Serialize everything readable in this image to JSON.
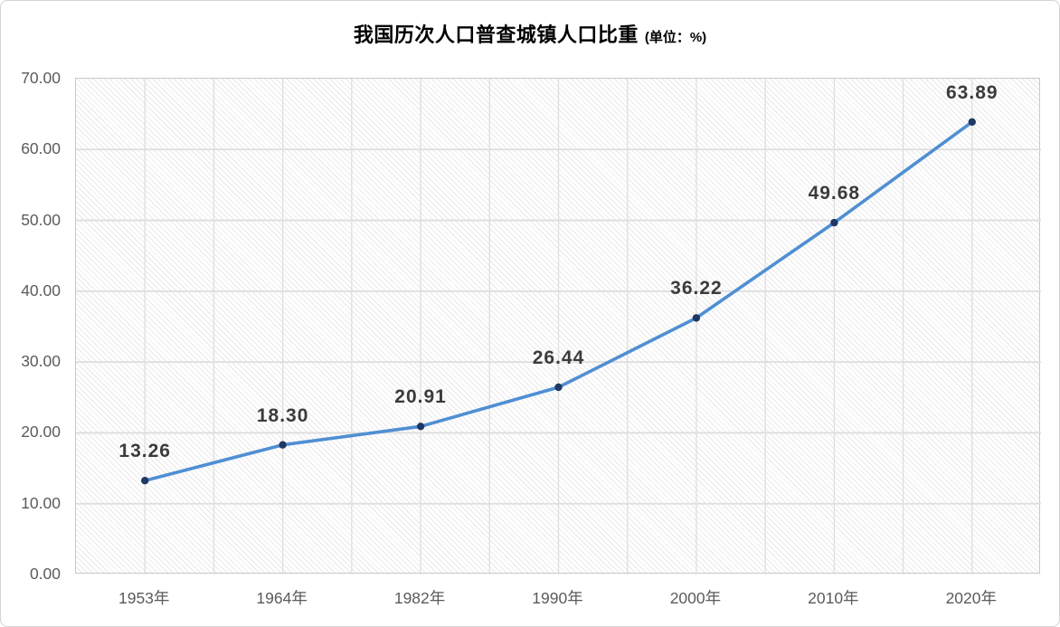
{
  "chart": {
    "title": "我国历次人口普查城镇人口比重",
    "unit_label": "(单位：%)"
  },
  "chart_data": {
    "type": "line",
    "title": "我国历次人口普查城镇人口比重 (单位：%)",
    "xlabel": "",
    "ylabel": "",
    "categories": [
      "1953年",
      "1964年",
      "1982年",
      "1990年",
      "2000年",
      "2010年",
      "2020年"
    ],
    "values": [
      13.26,
      18.3,
      20.91,
      26.44,
      36.22,
      49.68,
      63.89
    ],
    "data_labels": [
      "13.26",
      "18.30",
      "20.91",
      "26.44",
      "36.22",
      "49.68",
      "63.89"
    ],
    "ylim": [
      0,
      70
    ],
    "yticks": [
      "0.00",
      "10.00",
      "20.00",
      "30.00",
      "40.00",
      "50.00",
      "60.00",
      "70.00"
    ],
    "grid": true,
    "legend": "none",
    "colors": {
      "line": "#4f8fd3",
      "marker": "#1f3864",
      "data_label": "#3b3b3b",
      "axis_label": "#5b5b5b",
      "gridline": "#dedede",
      "plot_border": "#c8c8c8",
      "hatch": "#e9e9e9",
      "title": "#000000"
    }
  }
}
